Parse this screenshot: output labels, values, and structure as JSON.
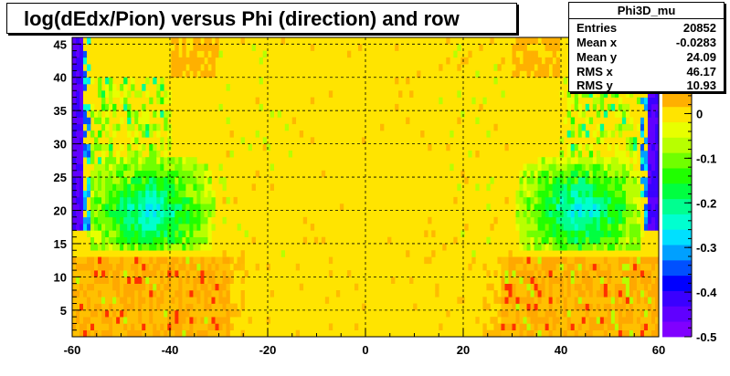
{
  "title": "log(dEdx/Pion) versus Phi (direction) and row",
  "stats": {
    "name": "Phi3D_mu",
    "rows": [
      {
        "label": "Entries",
        "value": "20852"
      },
      {
        "label": "Mean x",
        "value": "-0.0283"
      },
      {
        "label": "Mean y",
        "value": "24.09"
      },
      {
        "label": "RMS x",
        "value": "46.17"
      },
      {
        "label": "RMS y",
        "value": "10.93"
      }
    ]
  },
  "chart_data": {
    "type": "heatmap",
    "title": "log(dEdx/Pion) versus Phi (direction) and row",
    "xlim": [
      -60,
      60
    ],
    "ylim": [
      1,
      46
    ],
    "zlim": [
      -0.5,
      0.05
    ],
    "grid": true,
    "x_ticks": [
      -60,
      -40,
      -20,
      0,
      20,
      40,
      60
    ],
    "y_ticks": [
      5,
      10,
      15,
      20,
      25,
      30,
      35,
      40,
      45
    ],
    "z_ticks": [
      0,
      -0.1,
      -0.2,
      -0.3,
      -0.4,
      -0.5
    ],
    "x_tick_labels": [
      "-60",
      "-40",
      "-20",
      "0",
      "20",
      "40",
      "60"
    ],
    "y_tick_labels": [
      "5",
      "10",
      "15",
      "20",
      "25",
      "30",
      "35",
      "40",
      "45"
    ],
    "z_tick_labels": [
      "0",
      "-0.1",
      "-0.2",
      "-0.3",
      "-0.4",
      "-0.5"
    ],
    "palette": [
      "#8000ff",
      "#6000ff",
      "#3a00ff",
      "#0000ff",
      "#0050ff",
      "#00a0ff",
      "#00e0ff",
      "#00ffd0",
      "#00ff90",
      "#00ff40",
      "#20ff00",
      "#70ff00",
      "#b8ff00",
      "#e8ff00",
      "#ffe400",
      "#ffb000"
    ],
    "regions": [
      {
        "desc": "row 15-27 low band (green/cyan)",
        "x": [
          -57,
          -28
        ],
        "y": [
          15,
          27
        ],
        "z": -0.2
      },
      {
        "desc": "row 15-27 low band (green/cyan)",
        "x": [
          28,
          57
        ],
        "y": [
          15,
          27
        ],
        "z": -0.2
      },
      {
        "desc": "row 1-13 high band (orange)",
        "x": [
          -60,
          -28
        ],
        "y": [
          1,
          13
        ],
        "z": 0.03
      },
      {
        "desc": "row 1-13 high band (orange)",
        "x": [
          28,
          60
        ],
        "y": [
          1,
          13
        ],
        "z": 0.03
      },
      {
        "desc": "edge streak (violet)",
        "x": [
          -60,
          -57
        ],
        "y": [
          18,
          46
        ],
        "z": -0.5
      },
      {
        "desc": "edge streak (violet)",
        "x": [
          57,
          60
        ],
        "y": [
          18,
          40
        ],
        "z": -0.5
      },
      {
        "desc": "central plateau (yellow)",
        "x": [
          -28,
          28
        ],
        "y": [
          1,
          46
        ],
        "z": 0.0
      }
    ]
  }
}
